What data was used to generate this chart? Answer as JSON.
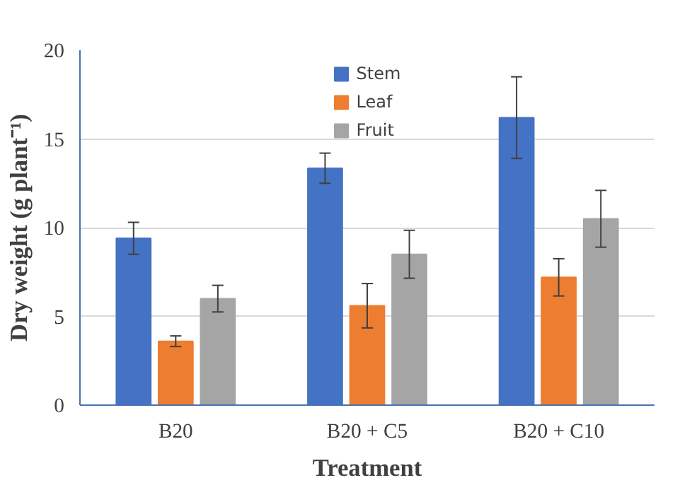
{
  "chart_data": {
    "type": "bar",
    "xlabel": "Treatment",
    "ylabel": "Dry weight (g plant⁻¹)",
    "categories": [
      "B20",
      "B20 + C5",
      "B20 + C10"
    ],
    "series": [
      {
        "name": "Stem",
        "color": "#4472c4",
        "values": [
          9.4,
          13.35,
          16.2
        ],
        "errors": [
          0.9,
          0.85,
          2.3
        ]
      },
      {
        "name": "Leaf",
        "color": "#ed7d31",
        "values": [
          3.6,
          5.6,
          7.2
        ],
        "errors": [
          0.3,
          1.25,
          1.05
        ]
      },
      {
        "name": "Fruit",
        "color": "#a5a5a5",
        "values": [
          6.0,
          8.5,
          10.5
        ],
        "errors": [
          0.75,
          1.35,
          1.6
        ]
      }
    ],
    "ylim": [
      0,
      20
    ],
    "yticks": [
      0,
      5,
      10,
      15,
      20
    ],
    "grid": "y",
    "legend": "top"
  }
}
